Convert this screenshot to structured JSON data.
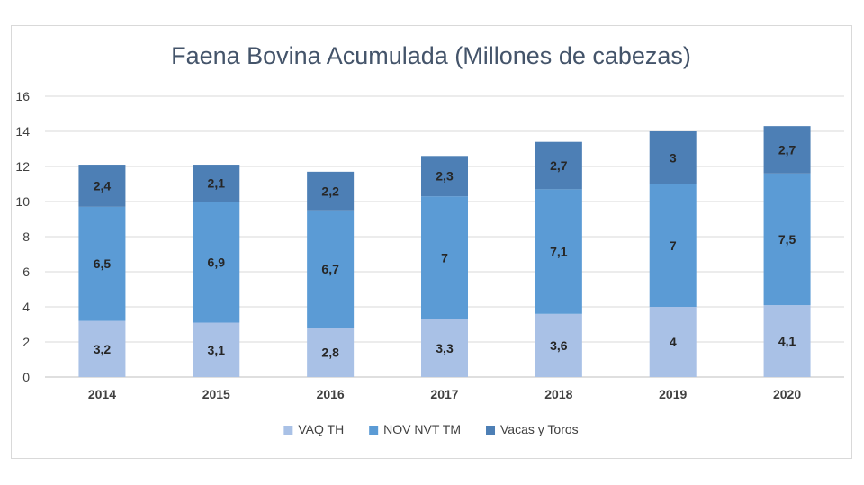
{
  "chart_data": {
    "type": "bar",
    "stacked": true,
    "title": "Faena Bovina Acumulada (Millones de cabezas)",
    "categories": [
      "2014",
      "2015",
      "2016",
      "2017",
      "2018",
      "2019",
      "2020"
    ],
    "series": [
      {
        "name": "VAQ TH",
        "values": [
          3.2,
          3.1,
          2.8,
          3.3,
          3.6,
          4,
          4.1
        ],
        "labels": [
          "3,2",
          "3,1",
          "2,8",
          "3,3",
          "3,6",
          "4",
          "4,1"
        ],
        "color": "#a9c1e6"
      },
      {
        "name": "NOV NVT TM",
        "values": [
          6.5,
          6.9,
          6.7,
          7,
          7.1,
          7,
          7.5
        ],
        "labels": [
          "6,5",
          "6,9",
          "6,7",
          "7",
          "7,1",
          "7",
          "7,5"
        ],
        "color": "#5b9bd5"
      },
      {
        "name": "Vacas y Toros",
        "values": [
          2.4,
          2.1,
          2.2,
          2.3,
          2.7,
          3,
          2.7
        ],
        "labels": [
          "2,4",
          "2,1",
          "2,2",
          "2,3",
          "2,7",
          "3",
          "2,7"
        ],
        "color": "#4d7fb5"
      }
    ],
    "yticks": [
      "0",
      "2",
      "4",
      "6",
      "8",
      "10",
      "12",
      "14",
      "16"
    ],
    "ylim": [
      0,
      16
    ],
    "grid": true,
    "legend_position": "bottom"
  }
}
